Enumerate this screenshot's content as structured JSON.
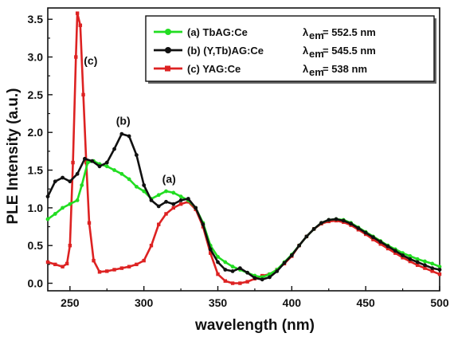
{
  "chart_data": {
    "type": "line",
    "title": "",
    "xlabel": "wavelength  (nm)",
    "ylabel": "PLE Intensity  (a.u.)",
    "xlim": [
      235,
      500
    ],
    "ylim": [
      -0.1,
      3.65
    ],
    "xticks": [
      250,
      300,
      350,
      400,
      450,
      500
    ],
    "yticks": [
      0.0,
      0.5,
      1.0,
      1.5,
      2.0,
      2.5,
      3.0,
      3.5
    ],
    "legend_position": "top-right",
    "grid": false,
    "series": [
      {
        "name": "(a) TbAG:Ce",
        "lambda_label": "λ",
        "lambda_sub": "em",
        "lambda_value": "= 552.5 nm",
        "color": "#22dd22",
        "marker": "circle",
        "points": [
          [
            235,
            0.85
          ],
          [
            240,
            0.92
          ],
          [
            245,
            1.0
          ],
          [
            250,
            1.05
          ],
          [
            255,
            1.1
          ],
          [
            258,
            1.3
          ],
          [
            262,
            1.6
          ],
          [
            266,
            1.62
          ],
          [
            270,
            1.58
          ],
          [
            275,
            1.55
          ],
          [
            280,
            1.5
          ],
          [
            285,
            1.45
          ],
          [
            290,
            1.38
          ],
          [
            295,
            1.28
          ],
          [
            300,
            1.22
          ],
          [
            305,
            1.12
          ],
          [
            310,
            1.17
          ],
          [
            315,
            1.22
          ],
          [
            320,
            1.2
          ],
          [
            325,
            1.15
          ],
          [
            330,
            1.1
          ],
          [
            335,
            1.0
          ],
          [
            340,
            0.8
          ],
          [
            345,
            0.5
          ],
          [
            350,
            0.35
          ],
          [
            355,
            0.28
          ],
          [
            360,
            0.22
          ],
          [
            365,
            0.18
          ],
          [
            370,
            0.14
          ],
          [
            375,
            0.1
          ],
          [
            380,
            0.08
          ],
          [
            385,
            0.12
          ],
          [
            390,
            0.18
          ],
          [
            395,
            0.28
          ],
          [
            400,
            0.38
          ],
          [
            405,
            0.5
          ],
          [
            410,
            0.62
          ],
          [
            415,
            0.72
          ],
          [
            420,
            0.8
          ],
          [
            425,
            0.84
          ],
          [
            430,
            0.85
          ],
          [
            435,
            0.84
          ],
          [
            440,
            0.8
          ],
          [
            445,
            0.74
          ],
          [
            450,
            0.68
          ],
          [
            455,
            0.62
          ],
          [
            460,
            0.56
          ],
          [
            465,
            0.5
          ],
          [
            470,
            0.45
          ],
          [
            475,
            0.4
          ],
          [
            480,
            0.36
          ],
          [
            485,
            0.32
          ],
          [
            490,
            0.29
          ],
          [
            495,
            0.26
          ],
          [
            500,
            0.22
          ]
        ]
      },
      {
        "name": "(b) (Y,Tb)AG:Ce",
        "lambda_label": "λ",
        "lambda_sub": "em",
        "lambda_value": "= 545.5 nm",
        "color": "#111111",
        "marker": "circle",
        "points": [
          [
            235,
            1.15
          ],
          [
            240,
            1.35
          ],
          [
            245,
            1.4
          ],
          [
            250,
            1.35
          ],
          [
            255,
            1.45
          ],
          [
            260,
            1.65
          ],
          [
            265,
            1.62
          ],
          [
            270,
            1.55
          ],
          [
            275,
            1.6
          ],
          [
            280,
            1.78
          ],
          [
            285,
            1.98
          ],
          [
            290,
            1.95
          ],
          [
            295,
            1.7
          ],
          [
            300,
            1.3
          ],
          [
            305,
            1.1
          ],
          [
            310,
            1.02
          ],
          [
            315,
            1.08
          ],
          [
            320,
            1.05
          ],
          [
            325,
            1.1
          ],
          [
            330,
            1.12
          ],
          [
            335,
            1.0
          ],
          [
            340,
            0.78
          ],
          [
            345,
            0.45
          ],
          [
            350,
            0.28
          ],
          [
            355,
            0.18
          ],
          [
            360,
            0.16
          ],
          [
            365,
            0.2
          ],
          [
            370,
            0.14
          ],
          [
            375,
            0.07
          ],
          [
            380,
            0.05
          ],
          [
            385,
            0.08
          ],
          [
            390,
            0.16
          ],
          [
            395,
            0.27
          ],
          [
            400,
            0.37
          ],
          [
            405,
            0.5
          ],
          [
            410,
            0.62
          ],
          [
            415,
            0.72
          ],
          [
            420,
            0.8
          ],
          [
            425,
            0.84
          ],
          [
            430,
            0.85
          ],
          [
            435,
            0.83
          ],
          [
            440,
            0.79
          ],
          [
            445,
            0.73
          ],
          [
            450,
            0.67
          ],
          [
            455,
            0.61
          ],
          [
            460,
            0.55
          ],
          [
            465,
            0.49
          ],
          [
            470,
            0.43
          ],
          [
            475,
            0.37
          ],
          [
            480,
            0.32
          ],
          [
            485,
            0.28
          ],
          [
            490,
            0.24
          ],
          [
            495,
            0.2
          ],
          [
            500,
            0.18
          ]
        ]
      },
      {
        "name": "(c) YAG:Ce",
        "lambda_label": "λ",
        "lambda_sub": "em",
        "lambda_value": "= 538 nm",
        "color": "#dd2222",
        "marker": "square",
        "points": [
          [
            235,
            0.28
          ],
          [
            240,
            0.25
          ],
          [
            245,
            0.22
          ],
          [
            248,
            0.26
          ],
          [
            250,
            0.5
          ],
          [
            252,
            1.6
          ],
          [
            254,
            3.0
          ],
          [
            255,
            3.58
          ],
          [
            257,
            3.42
          ],
          [
            259,
            2.5
          ],
          [
            261,
            1.6
          ],
          [
            263,
            0.8
          ],
          [
            266,
            0.3
          ],
          [
            270,
            0.15
          ],
          [
            275,
            0.16
          ],
          [
            280,
            0.18
          ],
          [
            285,
            0.2
          ],
          [
            290,
            0.22
          ],
          [
            295,
            0.25
          ],
          [
            300,
            0.3
          ],
          [
            305,
            0.5
          ],
          [
            310,
            0.78
          ],
          [
            315,
            0.92
          ],
          [
            320,
            1.0
          ],
          [
            325,
            1.05
          ],
          [
            330,
            1.08
          ],
          [
            335,
            0.98
          ],
          [
            340,
            0.75
          ],
          [
            345,
            0.4
          ],
          [
            350,
            0.12
          ],
          [
            355,
            0.03
          ],
          [
            360,
            0.0
          ],
          [
            365,
            0.0
          ],
          [
            370,
            0.02
          ],
          [
            375,
            0.06
          ],
          [
            380,
            0.1
          ],
          [
            385,
            0.12
          ],
          [
            390,
            0.18
          ],
          [
            395,
            0.26
          ],
          [
            400,
            0.36
          ],
          [
            405,
            0.5
          ],
          [
            410,
            0.62
          ],
          [
            415,
            0.72
          ],
          [
            420,
            0.79
          ],
          [
            425,
            0.82
          ],
          [
            430,
            0.83
          ],
          [
            435,
            0.81
          ],
          [
            440,
            0.77
          ],
          [
            445,
            0.71
          ],
          [
            450,
            0.65
          ],
          [
            455,
            0.58
          ],
          [
            460,
            0.52
          ],
          [
            465,
            0.46
          ],
          [
            470,
            0.4
          ],
          [
            475,
            0.34
          ],
          [
            480,
            0.29
          ],
          [
            485,
            0.24
          ],
          [
            490,
            0.2
          ],
          [
            495,
            0.16
          ],
          [
            500,
            0.12
          ]
        ]
      }
    ],
    "annotations": [
      {
        "text": "(a)",
        "x": 317,
        "y": 1.33
      },
      {
        "text": "(b)",
        "x": 286,
        "y": 2.1
      },
      {
        "text": "(c)",
        "x": 264,
        "y": 2.9
      }
    ]
  }
}
